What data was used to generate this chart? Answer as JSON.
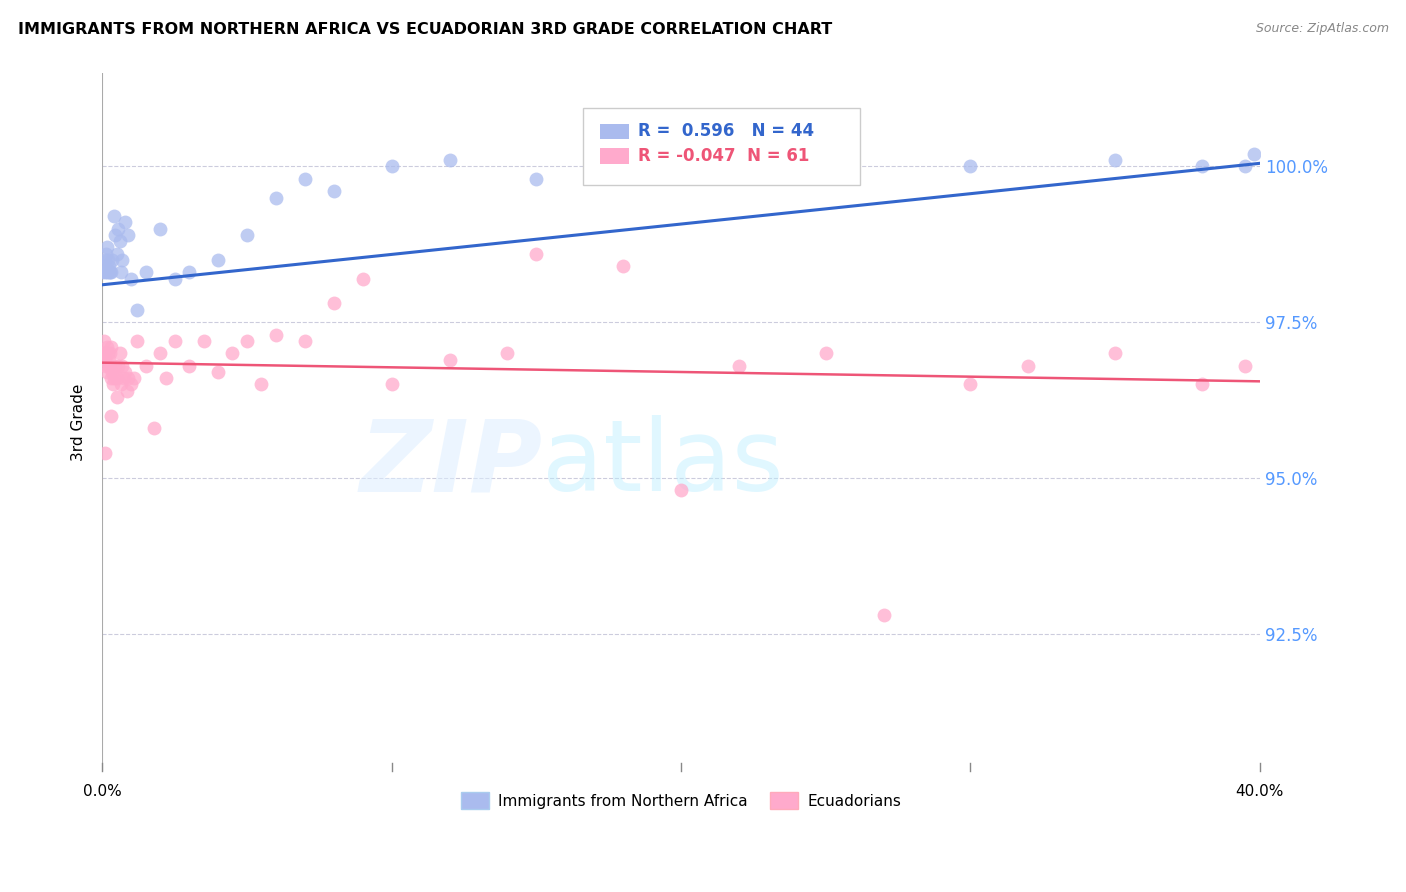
{
  "title": "IMMIGRANTS FROM NORTHERN AFRICA VS ECUADORIAN 3RD GRADE CORRELATION CHART",
  "source": "Source: ZipAtlas.com",
  "ylabel": "3rd Grade",
  "xlim": [
    0.0,
    40.0
  ],
  "ylim": [
    90.3,
    101.5
  ],
  "blue_r": 0.596,
  "blue_n": 44,
  "pink_r": -0.047,
  "pink_n": 61,
  "blue_color": "#AABBEE",
  "pink_color": "#FFAACC",
  "blue_line_color": "#3366CC",
  "pink_line_color": "#EE5577",
  "y_ticks": [
    92.5,
    95.0,
    97.5,
    100.0
  ],
  "blue_points_x": [
    0.0,
    0.05,
    0.08,
    0.1,
    0.12,
    0.15,
    0.18,
    0.2,
    0.22,
    0.25,
    0.28,
    0.3,
    0.35,
    0.4,
    0.45,
    0.5,
    0.55,
    0.6,
    0.65,
    0.7,
    0.8,
    0.9,
    1.0,
    1.2,
    1.5,
    2.0,
    2.5,
    3.0,
    4.0,
    5.0,
    6.0,
    7.0,
    8.0,
    10.0,
    12.0,
    15.0,
    18.0,
    20.0,
    25.0,
    30.0,
    35.0,
    38.0,
    39.5,
    39.8
  ],
  "blue_points_y": [
    98.3,
    98.4,
    98.5,
    98.3,
    98.6,
    98.3,
    98.7,
    98.5,
    98.3,
    98.4,
    98.3,
    98.3,
    98.5,
    99.2,
    98.9,
    98.6,
    99.0,
    98.8,
    98.3,
    98.5,
    99.1,
    98.9,
    98.2,
    97.7,
    98.3,
    99.0,
    98.2,
    98.3,
    98.5,
    98.9,
    99.5,
    99.8,
    99.6,
    100.0,
    100.1,
    99.8,
    100.0,
    100.0,
    100.1,
    100.0,
    100.1,
    100.0,
    100.0,
    100.2
  ],
  "pink_points_x": [
    0.02,
    0.05,
    0.08,
    0.1,
    0.12,
    0.15,
    0.18,
    0.2,
    0.22,
    0.25,
    0.28,
    0.3,
    0.32,
    0.35,
    0.38,
    0.4,
    0.45,
    0.5,
    0.55,
    0.6,
    0.65,
    0.7,
    0.75,
    0.8,
    0.85,
    0.9,
    1.0,
    1.1,
    1.2,
    1.5,
    1.8,
    2.0,
    2.2,
    2.5,
    3.0,
    3.5,
    4.0,
    4.5,
    5.0,
    5.5,
    6.0,
    7.0,
    8.0,
    9.0,
    10.0,
    12.0,
    14.0,
    15.0,
    18.0,
    20.0,
    22.0,
    25.0,
    27.0,
    30.0,
    32.0,
    35.0,
    38.0,
    39.5,
    0.1,
    0.3,
    0.5
  ],
  "pink_points_y": [
    97.0,
    97.2,
    96.9,
    97.0,
    96.8,
    97.1,
    96.7,
    97.0,
    96.8,
    96.9,
    97.0,
    97.1,
    96.6,
    96.7,
    96.5,
    96.6,
    96.8,
    96.6,
    96.8,
    97.0,
    96.5,
    96.8,
    96.6,
    96.7,
    96.4,
    96.6,
    96.5,
    96.6,
    97.2,
    96.8,
    95.8,
    97.0,
    96.6,
    97.2,
    96.8,
    97.2,
    96.7,
    97.0,
    97.2,
    96.5,
    97.3,
    97.2,
    97.8,
    98.2,
    96.5,
    96.9,
    97.0,
    98.6,
    98.4,
    94.8,
    96.8,
    97.0,
    92.8,
    96.5,
    96.8,
    97.0,
    96.5,
    96.8,
    95.4,
    96.0,
    96.3
  ],
  "blue_line_x0": 0.0,
  "blue_line_x1": 40.0,
  "blue_line_y0": 98.1,
  "blue_line_y1": 100.05,
  "pink_line_x0": 0.0,
  "pink_line_x1": 40.0,
  "pink_line_y0": 96.85,
  "pink_line_y1": 96.55
}
